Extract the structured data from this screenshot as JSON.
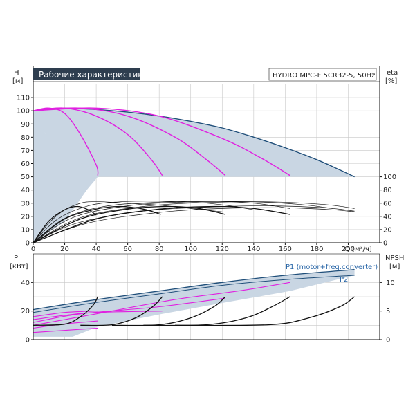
{
  "chart_data": [
    {
      "type": "line",
      "title": "Рабочие характеристики",
      "subtitle": "HYDRO MPC-F 5CR32-5, 50Hz",
      "x_unit": "Q [м³/ч]",
      "y_label": "H",
      "y_unit": "[м]",
      "y2_label": "eta",
      "y2_unit": "[%]",
      "xlim": [
        0,
        220
      ],
      "ylim": [
        0,
        120
      ],
      "y2lim": [
        0,
        120
      ],
      "x_ticks": [
        0,
        20,
        40,
        60,
        80,
        100,
        120,
        140,
        160,
        180,
        200
      ],
      "y_ticks": [
        0,
        10,
        20,
        30,
        40,
        50,
        60,
        70,
        80,
        90,
        100,
        110
      ],
      "y2_ticks": [
        0,
        20,
        40,
        60,
        80,
        100
      ],
      "head_envelope": [
        [
          0,
          100
        ],
        [
          10,
          101.5
        ],
        [
          20,
          102
        ],
        [
          40,
          101
        ],
        [
          60,
          99
        ],
        [
          80,
          96
        ],
        [
          100,
          92
        ],
        [
          120,
          87
        ],
        [
          140,
          80
        ],
        [
          160,
          72
        ],
        [
          180,
          63
        ],
        [
          195,
          55
        ],
        [
          204,
          50
        ]
      ],
      "head_curves_magenta": [
        [
          [
            0,
            100
          ],
          [
            10,
            102
          ],
          [
            20,
            98
          ],
          [
            30,
            82
          ],
          [
            40,
            59
          ],
          [
            41,
            51
          ]
        ],
        [
          [
            0,
            100
          ],
          [
            20,
            102
          ],
          [
            40,
            96
          ],
          [
            60,
            82
          ],
          [
            75,
            63
          ],
          [
            82,
            51
          ]
        ],
        [
          [
            0,
            100
          ],
          [
            30,
            102
          ],
          [
            60,
            96
          ],
          [
            90,
            80
          ],
          [
            110,
            63
          ],
          [
            122,
            51
          ]
        ],
        [
          [
            0,
            100
          ],
          [
            40,
            102
          ],
          [
            80,
            96
          ],
          [
            120,
            79
          ],
          [
            145,
            64
          ],
          [
            163,
            51
          ]
        ]
      ],
      "eff_curves_thick": [
        [
          [
            0,
            0
          ],
          [
            10,
            33
          ],
          [
            20,
            50
          ],
          [
            28,
            55
          ],
          [
            35,
            50
          ],
          [
            40,
            42
          ]
        ],
        [
          [
            0,
            0
          ],
          [
            20,
            36
          ],
          [
            40,
            51
          ],
          [
            55,
            55
          ],
          [
            70,
            51
          ],
          [
            81,
            43
          ]
        ],
        [
          [
            0,
            0
          ],
          [
            30,
            36
          ],
          [
            60,
            51
          ],
          [
            85,
            55
          ],
          [
            105,
            52
          ],
          [
            122,
            43
          ]
        ],
        [
          [
            0,
            0
          ],
          [
            40,
            36
          ],
          [
            80,
            51
          ],
          [
            115,
            55
          ],
          [
            140,
            52
          ],
          [
            163,
            43
          ]
        ]
      ],
      "eff_curves_thin": [
        [
          [
            0,
            0
          ],
          [
            10,
            30
          ],
          [
            20,
            50
          ],
          [
            30,
            60
          ],
          [
            35,
            62
          ],
          [
            45,
            62
          ],
          [
            60,
            60
          ],
          [
            80,
            57
          ],
          [
            100,
            52
          ],
          [
            120,
            47
          ]
        ],
        [
          [
            0,
            0
          ],
          [
            15,
            35
          ],
          [
            35,
            56
          ],
          [
            55,
            62
          ],
          [
            80,
            63
          ],
          [
            105,
            61
          ],
          [
            125,
            56
          ],
          [
            140,
            50
          ]
        ],
        [
          [
            0,
            0
          ],
          [
            20,
            37
          ],
          [
            45,
            55
          ],
          [
            75,
            61
          ],
          [
            110,
            63
          ],
          [
            140,
            60
          ],
          [
            163,
            52
          ]
        ],
        [
          [
            0,
            0
          ],
          [
            25,
            38
          ],
          [
            60,
            56
          ],
          [
            100,
            62
          ],
          [
            140,
            62
          ],
          [
            170,
            58
          ],
          [
            190,
            52
          ]
        ],
        [
          [
            0,
            0
          ],
          [
            30,
            38
          ],
          [
            70,
            55
          ],
          [
            110,
            61
          ],
          [
            150,
            62
          ],
          [
            185,
            58
          ],
          [
            204,
            52
          ]
        ],
        [
          [
            0,
            0
          ],
          [
            28,
            30
          ],
          [
            70,
            48
          ],
          [
            110,
            54
          ],
          [
            150,
            56
          ],
          [
            185,
            53
          ],
          [
            204,
            48
          ]
        ],
        [
          [
            0,
            0
          ],
          [
            35,
            30
          ],
          [
            80,
            46
          ],
          [
            120,
            52
          ],
          [
            160,
            53
          ],
          [
            190,
            50
          ],
          [
            204,
            47
          ]
        ]
      ]
    },
    {
      "type": "line",
      "y_label": "P",
      "y_unit": "[кВт]",
      "y2_label": "NPSH",
      "y2_unit": "[м]",
      "xlim": [
        0,
        220
      ],
      "ylim": [
        0,
        60
      ],
      "y2lim": [
        0,
        15
      ],
      "y_ticks": [
        0,
        20,
        40
      ],
      "y2_ticks": [
        0,
        5,
        10
      ],
      "legend": [
        "P1 (motor+freq.converter)",
        "P2"
      ],
      "p1_envelope": [
        [
          0,
          21
        ],
        [
          40,
          28
        ],
        [
          80,
          34
        ],
        [
          120,
          40
        ],
        [
          160,
          45
        ],
        [
          204,
          49
        ]
      ],
      "p2_envelope": [
        [
          0,
          19
        ],
        [
          40,
          26
        ],
        [
          80,
          32
        ],
        [
          120,
          38
        ],
        [
          160,
          42
        ],
        [
          204,
          45
        ]
      ],
      "p_curves_magenta": [
        [
          [
            0,
            16
          ],
          [
            20,
            19
          ],
          [
            41,
            20
          ]
        ],
        [
          [
            0,
            14
          ],
          [
            20,
            17
          ],
          [
            40,
            19
          ],
          [
            82,
            20
          ]
        ],
        [
          [
            0,
            12
          ],
          [
            30,
            18
          ],
          [
            80,
            23
          ],
          [
            122,
            29
          ]
        ],
        [
          [
            0,
            10
          ],
          [
            40,
            18
          ],
          [
            90,
            28
          ],
          [
            130,
            34
          ],
          [
            163,
            40
          ]
        ],
        [
          [
            0,
            8
          ],
          [
            20,
            11
          ],
          [
            41,
            13
          ]
        ],
        [
          [
            0,
            5
          ],
          [
            41,
            8
          ]
        ]
      ],
      "npsh_curves": [
        [
          [
            0,
            2.5
          ],
          [
            20,
            2.7
          ],
          [
            30,
            4
          ],
          [
            38,
            6
          ],
          [
            41,
            7.5
          ]
        ],
        [
          [
            30,
            2.5
          ],
          [
            50,
            2.6
          ],
          [
            65,
            3.8
          ],
          [
            76,
            5.8
          ],
          [
            82,
            7.5
          ]
        ],
        [
          [
            50,
            2.5
          ],
          [
            80,
            2.6
          ],
          [
            100,
            3.8
          ],
          [
            115,
            5.8
          ],
          [
            122,
            7.5
          ]
        ],
        [
          [
            70,
            2.5
          ],
          [
            110,
            2.6
          ],
          [
            135,
            3.8
          ],
          [
            152,
            5.8
          ],
          [
            163,
            7.5
          ]
        ],
        [
          [
            90,
            2.5
          ],
          [
            150,
            2.6
          ],
          [
            175,
            3.8
          ],
          [
            195,
            5.8
          ],
          [
            204,
            7.5
          ]
        ]
      ]
    }
  ]
}
